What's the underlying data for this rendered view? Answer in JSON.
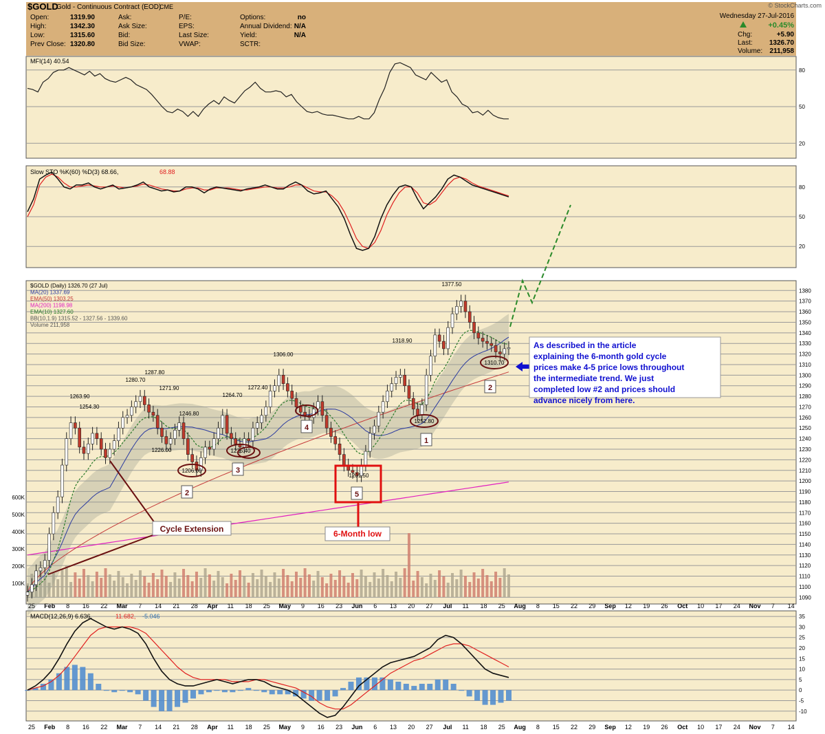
{
  "header": {
    "symbol": "$GOLD",
    "name": "Gold - Continuous Contract (EOD)",
    "exchange": "CME",
    "watermark": "© StockCharts.com",
    "date": "Wednesday   27-Jul-2016",
    "change_pct": "+0.45%",
    "fields": [
      {
        "label": "Open:",
        "value": "1319.90"
      },
      {
        "label": "High:",
        "value": "1342.30"
      },
      {
        "label": "Low:",
        "value": "1315.60"
      },
      {
        "label": "Prev Close:",
        "value": "1320.80"
      }
    ],
    "fields2": [
      "Ask:",
      "Ask Size:",
      "Bid:",
      "Bid Size:"
    ],
    "fields3": [
      "P/E:",
      "EPS:",
      "Last Size:",
      "VWAP:"
    ],
    "fields4": [
      {
        "label": "Options:",
        "value": "no"
      },
      {
        "label": "Annual Dividend:",
        "value": "N/A"
      },
      {
        "label": "Yield:",
        "value": "N/A"
      },
      {
        "label": "SCTR:",
        "value": ""
      }
    ],
    "right_fields": [
      {
        "label": "Chg:",
        "value": "+5.90"
      },
      {
        "label": "Last:",
        "value": "1326.70"
      },
      {
        "label": "Volume:",
        "value": "211,958"
      }
    ]
  },
  "colors": {
    "panel_bg": "#f7eccb",
    "header_bg": "#d8b07a",
    "candle_up": "#ffffff",
    "candle_down": "#c03a2b",
    "ma20": "#2a3aa0",
    "ema50": "#c43a3a",
    "ma200": "#e020c0",
    "ema10": "#2a7a2a",
    "bb_fill": "#9aa090",
    "annotation_red": "#e01010",
    "annotation_blue": "#1010d0",
    "annotation_maroon": "#6a1010",
    "forecast": "#2a8a2a",
    "macd_hist": "#4a8ad0",
    "positive": "#2a8a2a"
  },
  "chart_data": [
    {
      "type": "line",
      "panel": "MFI",
      "legend": "MFI(14) 40.54",
      "y_ticks": [
        20,
        50,
        80
      ],
      "ylim": [
        10,
        90
      ],
      "values": [
        65,
        64,
        62,
        70,
        73,
        78,
        80,
        80,
        82,
        80,
        78,
        76,
        79,
        75,
        77,
        73,
        71,
        70,
        72,
        74,
        72,
        68,
        66,
        64,
        60,
        55,
        50,
        46,
        45,
        48,
        46,
        42,
        46,
        42,
        48,
        52,
        55,
        52,
        58,
        55,
        53,
        58,
        63,
        66,
        70,
        65,
        62,
        62,
        63,
        62,
        58,
        60,
        54,
        50,
        46,
        45,
        46,
        44,
        43,
        43,
        42,
        41,
        40,
        40,
        42,
        40,
        40,
        45,
        56,
        65,
        78,
        85,
        86,
        84,
        82,
        76,
        74,
        72,
        78,
        74,
        70,
        72,
        62,
        58,
        52,
        50,
        45,
        46,
        43,
        47,
        43,
        41,
        40,
        40
      ]
    },
    {
      "type": "line",
      "panel": "Slow STO",
      "legend_k": "Slow STO %K(60) %D(3) 68.66,",
      "legend_d": "68.88",
      "y_ticks": [
        20,
        50,
        80
      ],
      "ylim": [
        0,
        100
      ],
      "series": [
        {
          "values": [
            55,
            68,
            88,
            92,
            95,
            88,
            80,
            78,
            82,
            82,
            84,
            80,
            78,
            80,
            82,
            78,
            79,
            80,
            82,
            85,
            80,
            78,
            76,
            77,
            75,
            76,
            80,
            80,
            78,
            74,
            78,
            80,
            79,
            78,
            77,
            76,
            78,
            79,
            80,
            82,
            80,
            78,
            78,
            82,
            85,
            82,
            76,
            73,
            74,
            76,
            68,
            60,
            48,
            32,
            18,
            16,
            18,
            30,
            48,
            62,
            72,
            80,
            82,
            80,
            68,
            58,
            64,
            70,
            78,
            88,
            92,
            90,
            86,
            82,
            80,
            78,
            76,
            74,
            72,
            70
          ]
        },
        {
          "values": [
            50,
            62,
            82,
            90,
            93,
            90,
            84,
            80,
            80,
            81,
            82,
            81,
            80,
            80,
            81,
            80,
            79,
            80,
            81,
            83,
            82,
            80,
            78,
            77,
            76,
            76,
            78,
            79,
            79,
            77,
            77,
            79,
            79,
            79,
            78,
            77,
            77,
            78,
            79,
            80,
            80,
            79,
            79,
            80,
            82,
            82,
            79,
            76,
            75,
            75,
            71,
            65,
            55,
            42,
            28,
            20,
            18,
            24,
            36,
            52,
            64,
            74,
            80,
            80,
            74,
            64,
            62,
            66,
            74,
            82,
            88,
            90,
            88,
            84,
            81,
            79,
            77,
            75,
            73,
            71
          ]
        }
      ]
    },
    {
      "type": "candlestick",
      "panel": "Price",
      "legend": [
        "$GOLD (Daily) 1326.70 (27 Jul)",
        "MA(20) 1337.69",
        "EMA(50) 1303.25",
        "MA(200) 1198.98",
        "EMA(10) 1327.60",
        "BB(10,1.9) 1315.52 - 1327.56 - 1339.60",
        "Volume 211,958"
      ],
      "y_ticks": [
        1090,
        1100,
        1110,
        1120,
        1130,
        1140,
        1150,
        1160,
        1170,
        1180,
        1190,
        1200,
        1210,
        1220,
        1230,
        1240,
        1250,
        1260,
        1270,
        1280,
        1290,
        1300,
        1310,
        1320,
        1330,
        1340,
        1350,
        1360,
        1370,
        1380
      ],
      "ylim": [
        1085,
        1388
      ],
      "closes": [
        1095,
        1102,
        1115,
        1118,
        1125,
        1150,
        1170,
        1185,
        1215,
        1240,
        1255,
        1250,
        1232,
        1226,
        1235,
        1245,
        1240,
        1230,
        1222,
        1230,
        1238,
        1250,
        1260,
        1262,
        1270,
        1275,
        1280,
        1272,
        1265,
        1262,
        1250,
        1242,
        1235,
        1240,
        1248,
        1255,
        1240,
        1225,
        1218,
        1210,
        1222,
        1232,
        1230,
        1240,
        1250,
        1262,
        1245,
        1240,
        1235,
        1232,
        1240,
        1238,
        1250,
        1255,
        1262,
        1270,
        1285,
        1290,
        1300,
        1292,
        1285,
        1278,
        1270,
        1265,
        1262,
        1260,
        1268,
        1275,
        1262,
        1250,
        1242,
        1235,
        1225,
        1215,
        1210,
        1208,
        1205,
        1215,
        1228,
        1245,
        1252,
        1265,
        1275,
        1285,
        1292,
        1298,
        1300,
        1290,
        1278,
        1268,
        1262,
        1272,
        1300,
        1318,
        1338,
        1332,
        1325,
        1345,
        1358,
        1365,
        1370,
        1360,
        1350,
        1340,
        1335,
        1332,
        1330,
        1328,
        1322,
        1320,
        1325,
        1326
      ],
      "volume_ticks": [
        "100K",
        "200K",
        "300K",
        "400K",
        "500K",
        "600K"
      ],
      "annotations": {
        "price_labels": [
          "1263.90",
          "1254.30",
          "1280.70",
          "1287.80",
          "1271.90",
          "1226.00",
          "1246.80",
          "1206.00",
          "1264.70",
          "1225.40",
          "1272.40",
          "1306.00",
          "1201.50",
          "1318.90",
          "1252.80",
          "1377.50",
          "1310.70"
        ],
        "cycle_numbers": [
          "2",
          "3",
          "4",
          "5",
          "1",
          "2"
        ],
        "cycle_extension": "Cycle Extension",
        "six_month_low": "6-Month low",
        "note": "As described in the article explaining the 6-month gold cycle prices make 4-5 price lows throughout the intermediate trend. We just completed low #2 and prices should advance nicely from here."
      }
    },
    {
      "type": "line",
      "panel": "MACD",
      "legend": "MACD(12,26,9) 6.636,",
      "legend_signal": "11.682,",
      "legend_hist": "-5.046",
      "y_ticks": [
        -10,
        -5,
        0,
        5,
        10,
        15,
        20,
        25,
        30,
        35
      ],
      "ylim": [
        -14,
        37
      ],
      "series": [
        {
          "name": "MACD",
          "values": [
            0,
            2,
            5,
            9,
            15,
            22,
            28,
            32,
            34,
            32,
            30,
            29,
            30,
            29,
            27,
            22,
            15,
            9,
            5,
            3,
            2,
            2,
            3,
            4,
            5,
            4,
            3,
            4,
            5,
            5,
            4,
            2,
            1,
            0,
            -2,
            -5,
            -8,
            -11,
            -13,
            -12,
            -8,
            -3,
            2,
            5,
            8,
            11,
            13,
            14,
            15,
            16,
            18,
            20,
            24,
            26,
            25,
            22,
            18,
            14,
            10,
            8,
            7,
            6
          ]
        },
        {
          "name": "Signal",
          "values": [
            0,
            1,
            2,
            4,
            7,
            11,
            16,
            21,
            26,
            29,
            30,
            30,
            30,
            30,
            29,
            27,
            23,
            19,
            15,
            11,
            8,
            6,
            5,
            5,
            5,
            5,
            4,
            4,
            4,
            5,
            5,
            4,
            3,
            2,
            1,
            -1,
            -3,
            -6,
            -8,
            -9,
            -9,
            -7,
            -4,
            -1,
            2,
            5,
            8,
            10,
            12,
            14,
            15,
            17,
            19,
            21,
            22,
            22,
            21,
            19,
            17,
            15,
            13,
            11
          ]
        }
      ],
      "histogram": [
        0,
        1,
        3,
        5,
        8,
        11,
        12,
        11,
        8,
        3,
        0,
        -1,
        0,
        -1,
        -2,
        -5,
        -8,
        -10,
        -10,
        -8,
        -6,
        -4,
        -2,
        -1,
        0,
        -1,
        -1,
        0,
        1,
        0,
        -1,
        -2,
        -2,
        -2,
        -3,
        -4,
        -5,
        -5,
        -5,
        -3,
        1,
        4,
        6,
        6,
        6,
        6,
        5,
        4,
        3,
        2,
        3,
        3,
        5,
        5,
        3,
        0,
        -3,
        -5,
        -7,
        -7,
        -6,
        -5
      ]
    }
  ],
  "x_axis": {
    "labels": [
      "25",
      "Feb",
      "8",
      "16",
      "22",
      "Mar",
      "7",
      "14",
      "21",
      "28",
      "Apr",
      "11",
      "18",
      "25",
      "May",
      "9",
      "16",
      "23",
      "Jun",
      "6",
      "13",
      "20",
      "27",
      "Jul",
      "11",
      "18",
      "25",
      "Aug",
      "8",
      "15",
      "22",
      "29",
      "Sep",
      "12",
      "19",
      "26",
      "Oct",
      "10",
      "17",
      "24",
      "Nov",
      "7",
      "14"
    ],
    "bold": [
      "Feb",
      "Mar",
      "Apr",
      "May",
      "Jun",
      "Jul",
      "Aug",
      "Sep",
      "Oct",
      "Nov"
    ]
  }
}
